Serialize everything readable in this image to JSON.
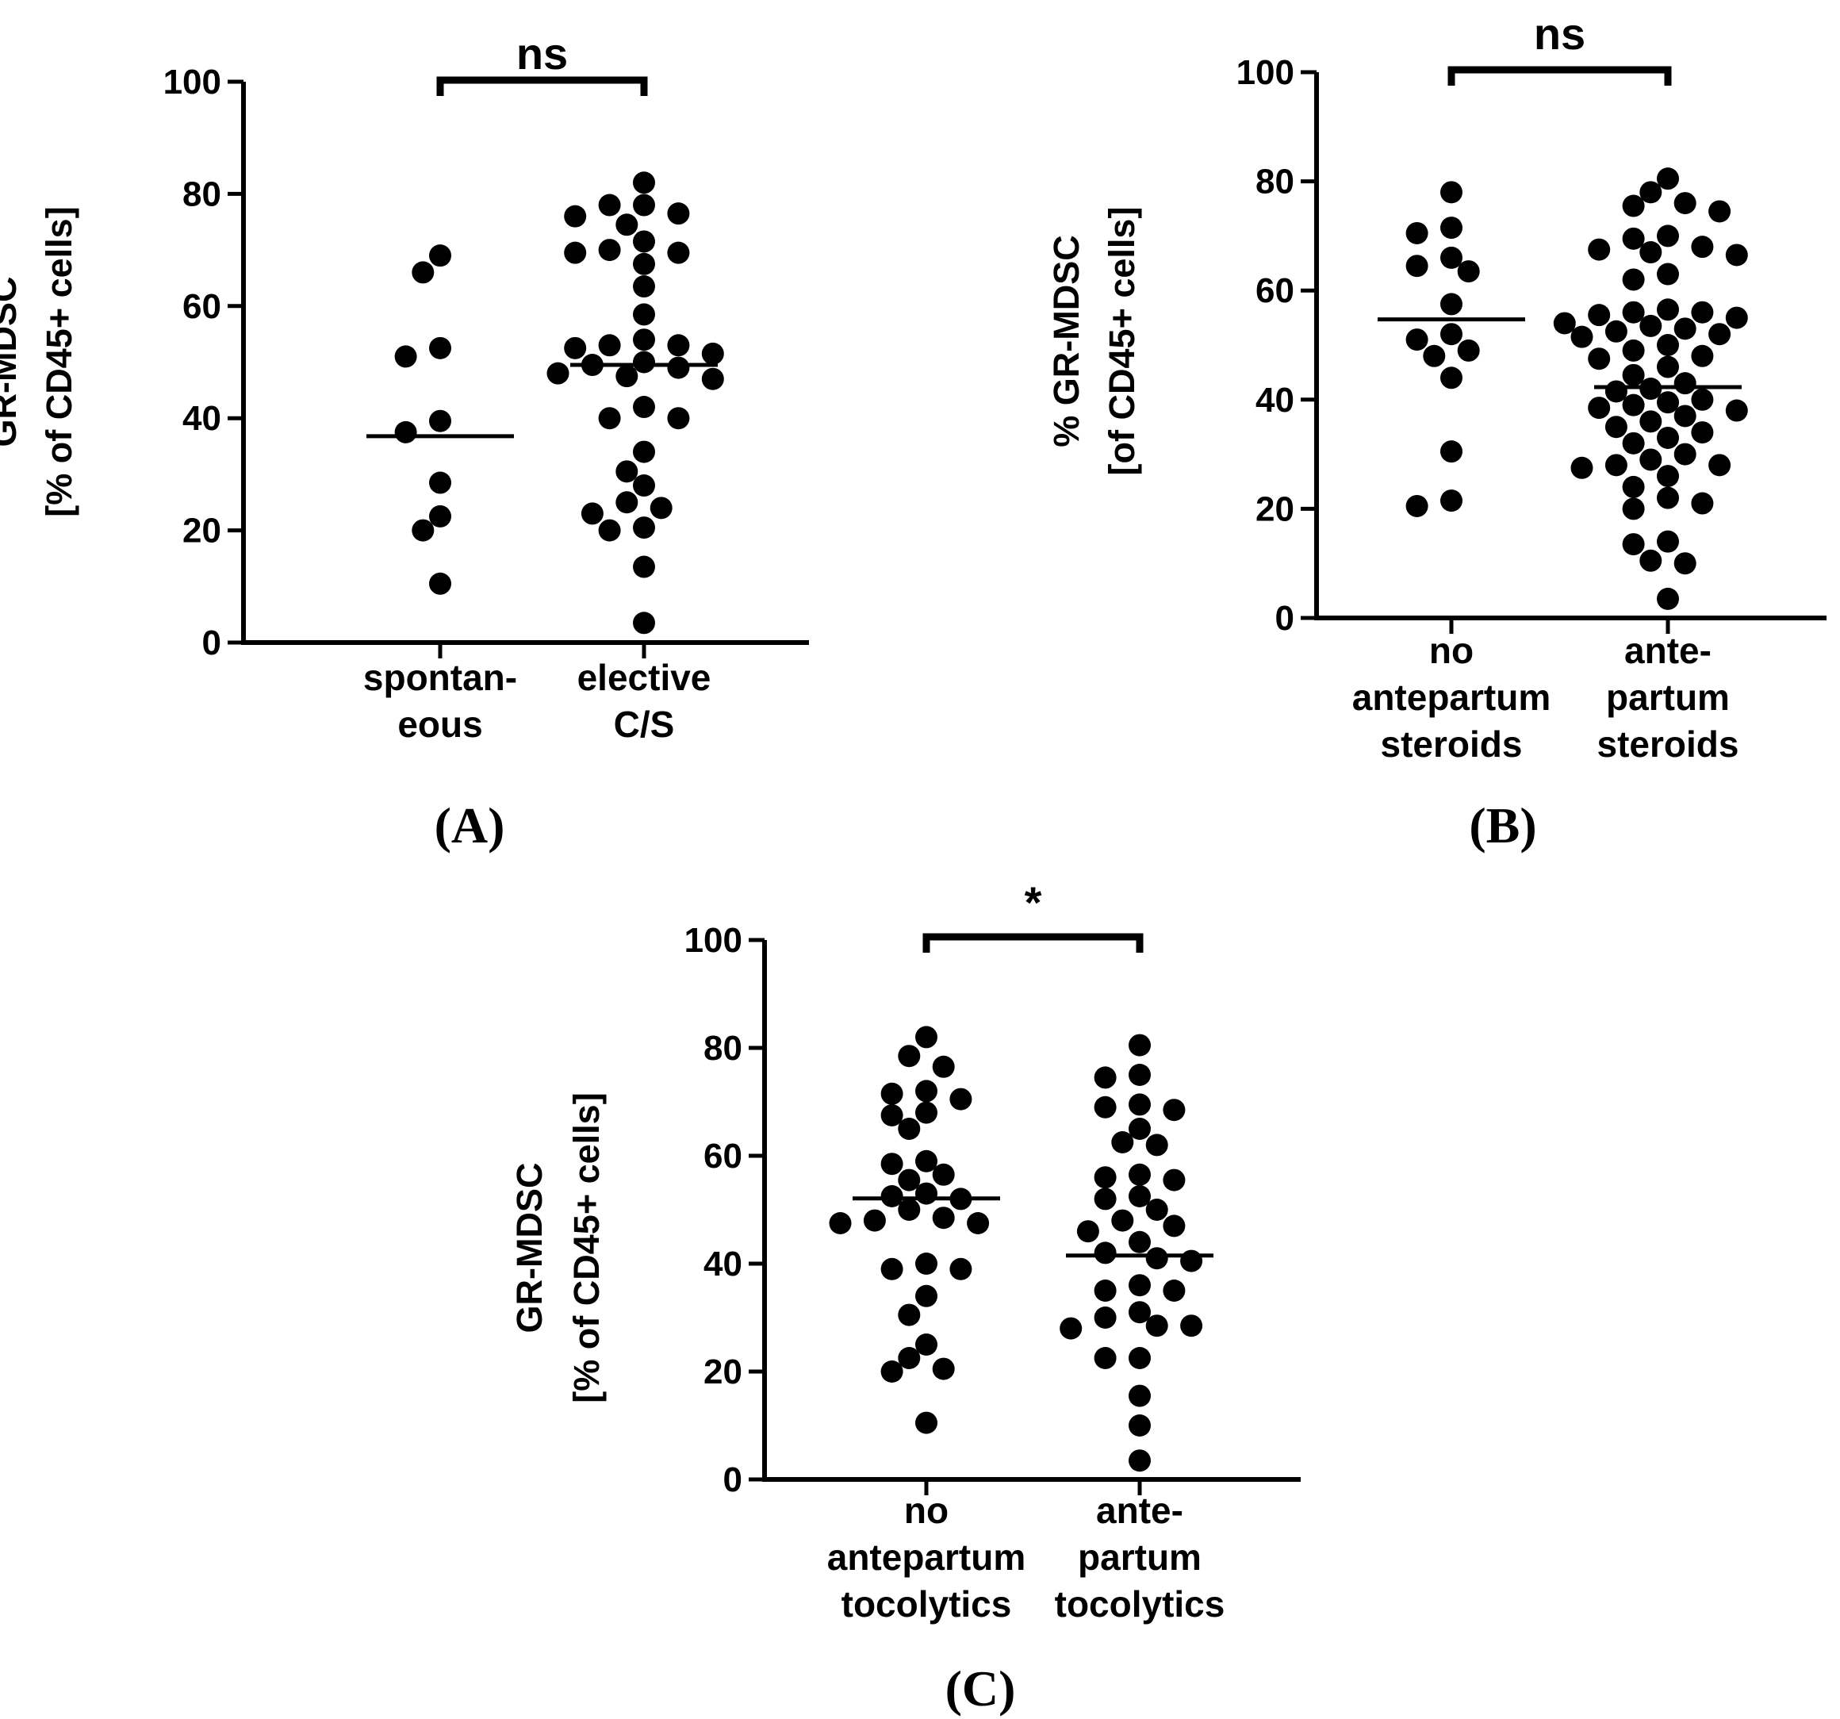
{
  "chart_data": [
    {
      "type": "scatter",
      "panel_label": "(A)",
      "ylabel_lines": [
        "GR-MDSC",
        "[% of CD45+ cells]"
      ],
      "ylim": [
        0,
        100
      ],
      "yticks": [
        "0",
        "20",
        "40",
        "60",
        "80",
        "100"
      ],
      "categories": [
        {
          "name_lines": [
            "spontan-",
            "eous"
          ],
          "values": [
            69,
            66,
            52.5,
            51,
            39.5,
            37.5,
            28.5,
            22.5,
            20,
            10.5
          ],
          "median": 36.8
        },
        {
          "name_lines": [
            "elective",
            "C/S"
          ],
          "values": [
            82,
            78,
            78,
            76.5,
            76,
            74.5,
            71.5,
            70,
            69.5,
            69.5,
            67.5,
            63.5,
            58.5,
            54,
            53,
            53,
            52.5,
            51.5,
            50,
            49.5,
            49,
            48,
            47.5,
            47,
            42,
            40,
            40,
            34,
            30.5,
            28,
            25,
            24,
            23,
            20.5,
            20,
            13.5,
            3.5
          ],
          "median": 49.5
        }
      ],
      "significance": "ns"
    },
    {
      "type": "scatter",
      "panel_label": "(B)",
      "ylabel_lines": [
        "% GR-MDSC",
        "[of CD45+ cells]"
      ],
      "ylim": [
        0,
        100
      ],
      "yticks": [
        "0",
        "20",
        "40",
        "60",
        "80",
        "100"
      ],
      "categories": [
        {
          "name_lines": [
            "no",
            "antepartum",
            "steroids"
          ],
          "values": [
            78,
            71.5,
            70.5,
            66,
            64.5,
            63.5,
            57.5,
            52,
            51,
            49,
            48,
            44,
            30.5,
            21.5,
            20.5
          ],
          "median": 54.7
        },
        {
          "name_lines": [
            "ante-",
            "partum",
            "steroids"
          ],
          "values": [
            80.5,
            78,
            76,
            75.5,
            74.5,
            70,
            69.5,
            68,
            67.5,
            67,
            66.5,
            63,
            62,
            56.5,
            56,
            56,
            55.5,
            55,
            54,
            53.5,
            53,
            52.5,
            52,
            51.5,
            50,
            49,
            48,
            47.5,
            46,
            44.5,
            43,
            42,
            41.5,
            40,
            39.5,
            39,
            38.5,
            38,
            37,
            36,
            35,
            34,
            33,
            32,
            30,
            29,
            28,
            28,
            27.5,
            26,
            24,
            22,
            21,
            20,
            14,
            13.5,
            10.5,
            10,
            3.5
          ],
          "median": 42.3
        }
      ],
      "significance": "ns"
    },
    {
      "type": "scatter",
      "panel_label": "(C)",
      "ylabel_lines": [
        "GR-MDSC",
        "[% of CD45+ cells]"
      ],
      "ylim": [
        0,
        100
      ],
      "yticks": [
        "0",
        "20",
        "40",
        "60",
        "80",
        "100"
      ],
      "categories": [
        {
          "name_lines": [
            "no",
            "antepartum",
            "tocolytics"
          ],
          "values": [
            82,
            78.5,
            76.5,
            72,
            71.5,
            70.5,
            68,
            67.5,
            65,
            59,
            58.5,
            56.5,
            55.5,
            53,
            52.5,
            52,
            50,
            48.5,
            48,
            47.5,
            47.5,
            40,
            39,
            39,
            34,
            30.5,
            25,
            22.5,
            20.5,
            20,
            10.5
          ],
          "median": 52.1
        },
        {
          "name_lines": [
            "ante-",
            "partum",
            "tocolytics"
          ],
          "values": [
            80.5,
            75,
            74.5,
            69.5,
            69,
            68.5,
            65,
            62.5,
            62,
            56.5,
            56,
            55.5,
            52.5,
            52,
            50,
            48,
            47,
            46,
            44,
            42,
            41,
            40.5,
            36,
            35,
            35,
            31,
            30,
            28.5,
            28.5,
            28,
            22.5,
            22.5,
            15.5,
            10,
            3.5
          ],
          "median": 41.5
        }
      ],
      "significance": "*"
    }
  ]
}
